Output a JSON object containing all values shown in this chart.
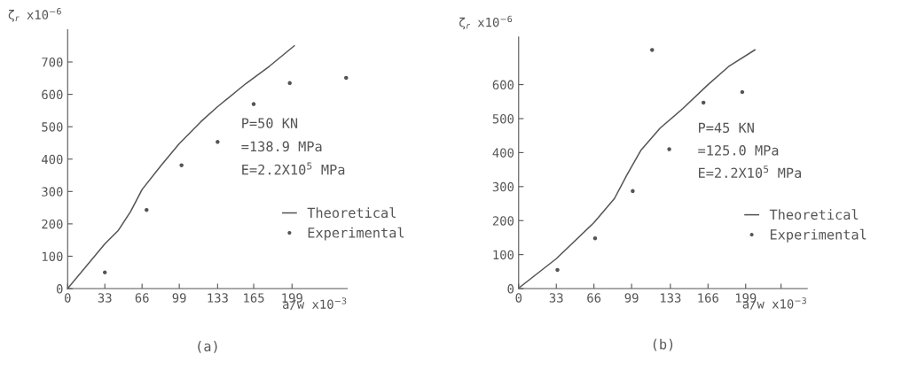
{
  "chart_data": [
    {
      "type": "line",
      "title": "(a)",
      "xlabel": "a/w x10$^{−3}$",
      "ylabel": "ζ$_{r}$ x10$^{−6}$",
      "xlim": [
        0,
        248
      ],
      "ylim": [
        0,
        800
      ],
      "xticks": [
        0,
        33,
        66,
        99,
        133,
        165,
        199
      ],
      "yticks": [
        0,
        100,
        200,
        300,
        400,
        500,
        600,
        700
      ],
      "grid": false,
      "legend": "right",
      "annotations": [
        "P=50 KN",
        "=138.9 MPa",
        "E=2.2X10$^{5}$ MPa"
      ],
      "series": [
        {
          "name": "Theoretical",
          "color": "#555555",
          "marker": "none",
          "x": [
            0,
            33,
            45,
            56,
            66,
            83,
            99,
            118,
            133,
            158,
            179,
            201
          ],
          "values": [
            0,
            138,
            180,
            239,
            306,
            381,
            448,
            515,
            562,
            633,
            687,
            750
          ]
        },
        {
          "name": "Experimental",
          "type": "scatter",
          "color": "#555555",
          "marker": "circle",
          "x": [
            33,
            70,
            101,
            133,
            165,
            197,
            247
          ],
          "values": [
            50,
            243,
            381,
            453,
            570,
            635,
            651
          ]
        }
      ]
    },
    {
      "type": "line",
      "title": "(b)",
      "xlabel": "a/w x10$^{−3}$",
      "ylabel": "ζ$_{r}$ x10$^{−6}$",
      "xlim": [
        0,
        253
      ],
      "ylim": [
        0,
        740
      ],
      "xticks": [
        0,
        33,
        66,
        99,
        133,
        166,
        199,
        {
          "value": 230,
          "label": null
        }
      ],
      "yticks": [
        0,
        100,
        200,
        300,
        400,
        500,
        600
      ],
      "grid": false,
      "legend": "right",
      "annotations": [
        "P=45 KN",
        "=125.0 MPa",
        "E=2.2X10$^{5}$ MPa"
      ],
      "series": [
        {
          "name": "Theoretical",
          "color": "#555555",
          "marker": "none",
          "x": [
            1,
            33,
            66,
            84,
            95,
            107,
            124,
            144,
            166,
            184,
            207
          ],
          "values": [
            4,
            88,
            194,
            265,
            335,
            406,
            472,
            530,
            600,
            653,
            702
          ]
        },
        {
          "name": "Experimental",
          "type": "scatter",
          "color": "#555555",
          "marker": "circle",
          "x": [
            34,
            67,
            100,
            117,
            132,
            162,
            196
          ],
          "values": [
            55,
            148,
            287,
            702,
            410,
            547,
            578
          ]
        }
      ]
    }
  ]
}
